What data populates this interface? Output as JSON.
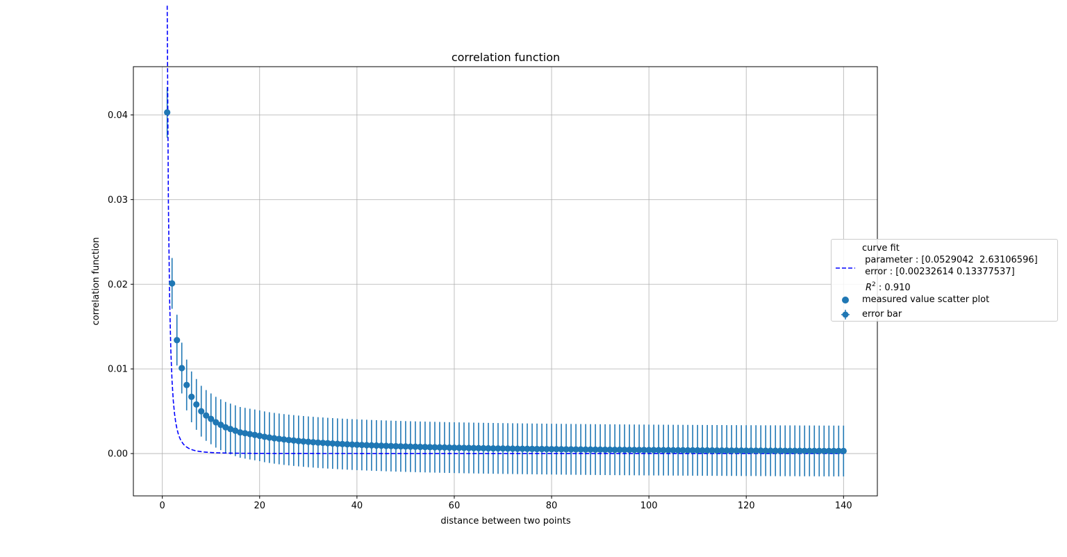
{
  "chart_data": {
    "type": "scatter",
    "title": "correlation function",
    "xlabel": "distance between two points",
    "ylabel": "correlation function",
    "xlim": [
      -5.95,
      146.95
    ],
    "ylim": [
      -0.005,
      0.0457
    ],
    "xticks": [
      0,
      20,
      40,
      60,
      80,
      100,
      120,
      140
    ],
    "xtick_labels": [
      "0",
      "20",
      "40",
      "60",
      "80",
      "100",
      "120",
      "140"
    ],
    "yticks": [
      0.0,
      0.01,
      0.02,
      0.03,
      0.04
    ],
    "ytick_labels": [
      "0.00",
      "0.01",
      "0.02",
      "0.03",
      "0.04"
    ],
    "grid": true,
    "legend_position": "center-right, outside plot",
    "colors": {
      "measured": "#1f77b4",
      "fit": "#0000ff",
      "grid": "#b0b0b0"
    },
    "fit_params": {
      "a": 0.0529042,
      "b": 2.63106596
    },
    "series": [
      {
        "name": "measured value scatter plot",
        "kind": "scatter",
        "x_start": 1,
        "x_end": 140,
        "x_step": 1,
        "values": [
          0.0403,
          0.0201,
          0.0134,
          0.0101,
          0.0081,
          0.0067,
          0.0058,
          0.005,
          0.0045,
          0.0041,
          0.0037,
          0.0034,
          0.0031,
          0.0029,
          0.0027,
          0.0025,
          0.0024,
          0.0023,
          0.0022,
          0.0021
        ],
        "tail": {
          "from_x": 21,
          "y_start": 0.00198,
          "y_end": 0.0003,
          "shape": "1/x"
        }
      },
      {
        "name": "error bar",
        "kind": "errorbar",
        "errors": [
          0.003,
          0.003,
          0.003,
          0.003,
          0.003,
          0.003,
          0.003,
          0.003,
          0.003,
          0.003,
          0.003,
          0.003,
          0.003,
          0.003,
          0.003,
          0.003,
          0.003,
          0.003,
          0.003,
          0.003
        ],
        "tail_error": 0.003
      },
      {
        "name": "curve fit",
        "kind": "line",
        "style": "dashed",
        "model": "a * x^(-b)",
        "x_start": 1,
        "x_end": 140
      }
    ],
    "legend": {
      "fit_label_lines": [
        "curve fit",
        " parameter : [0.0529042  2.63106596]",
        " error : [0.00232614 0.13377537]"
      ],
      "r2_label": "R",
      "r2_sup": "2",
      "r2_value": " : 0.910",
      "scatter_label": "measured value scatter plot",
      "errorbar_label": "error bar"
    }
  }
}
